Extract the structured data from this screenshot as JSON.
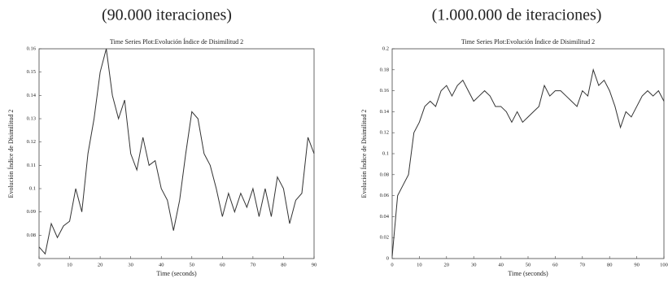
{
  "chart_data": [
    {
      "type": "line",
      "caption": "(90.000 iteraciones)",
      "title": "Time Series Plot:Evolución Índice de Disimilitud 2",
      "xlabel": "Time (seconds)",
      "ylabel": "Evolución Índice de Disimilitud 2",
      "x": [
        0,
        2,
        4,
        6,
        8,
        10,
        12,
        14,
        16,
        18,
        20,
        22,
        24,
        26,
        28,
        30,
        32,
        34,
        36,
        38,
        40,
        42,
        44,
        46,
        48,
        50,
        52,
        54,
        56,
        58,
        60,
        62,
        64,
        66,
        68,
        70,
        72,
        74,
        76,
        78,
        80,
        82,
        84,
        86,
        88,
        90
      ],
      "values": [
        0.075,
        0.072,
        0.085,
        0.079,
        0.084,
        0.086,
        0.1,
        0.09,
        0.115,
        0.13,
        0.15,
        0.16,
        0.14,
        0.13,
        0.138,
        0.115,
        0.108,
        0.122,
        0.11,
        0.112,
        0.1,
        0.095,
        0.082,
        0.095,
        0.115,
        0.133,
        0.13,
        0.115,
        0.11,
        0.1,
        0.088,
        0.098,
        0.09,
        0.098,
        0.092,
        0.1,
        0.088,
        0.1,
        0.088,
        0.105,
        0.1,
        0.085,
        0.095,
        0.098,
        0.122,
        0.115
      ],
      "color": "#333333",
      "xlim": [
        0,
        90
      ],
      "xticks": [
        0,
        10,
        20,
        30,
        40,
        50,
        60,
        70,
        80,
        90
      ],
      "ylim": [
        0.07,
        0.16
      ],
      "yticks": [
        0.08,
        0.09,
        0.1,
        0.11,
        0.12,
        0.13,
        0.14,
        0.15,
        0.16
      ]
    },
    {
      "type": "line",
      "caption": "(1.000.000 de iteraciones)",
      "title": "Time Series Plot:Evolución Índice de Disimilitud 2",
      "xlabel": "Time (seconds)",
      "ylabel": "Evolución Índice de Disimilitud 2",
      "x": [
        0,
        2,
        4,
        6,
        8,
        10,
        12,
        14,
        16,
        18,
        20,
        22,
        24,
        26,
        28,
        30,
        32,
        34,
        36,
        38,
        40,
        42,
        44,
        46,
        48,
        50,
        52,
        54,
        56,
        58,
        60,
        62,
        64,
        66,
        68,
        70,
        72,
        74,
        76,
        78,
        80,
        82,
        84,
        86,
        88,
        90,
        92,
        94,
        96,
        98,
        100
      ],
      "values": [
        0.002,
        0.06,
        0.07,
        0.08,
        0.12,
        0.13,
        0.145,
        0.15,
        0.145,
        0.16,
        0.165,
        0.155,
        0.165,
        0.17,
        0.16,
        0.15,
        0.155,
        0.16,
        0.155,
        0.145,
        0.145,
        0.14,
        0.13,
        0.14,
        0.13,
        0.135,
        0.14,
        0.145,
        0.165,
        0.155,
        0.16,
        0.16,
        0.155,
        0.15,
        0.145,
        0.16,
        0.155,
        0.18,
        0.165,
        0.17,
        0.16,
        0.145,
        0.125,
        0.14,
        0.135,
        0.145,
        0.155,
        0.16,
        0.155,
        0.16,
        0.15
      ],
      "color": "#333333",
      "xlim": [
        0,
        100
      ],
      "xticks": [
        0,
        10,
        20,
        30,
        40,
        50,
        60,
        70,
        80,
        90,
        100
      ],
      "ylim": [
        0,
        0.2
      ],
      "yticks": [
        0,
        0.02,
        0.04,
        0.06,
        0.08,
        0.1,
        0.12,
        0.14,
        0.16,
        0.18,
        0.2
      ]
    }
  ]
}
